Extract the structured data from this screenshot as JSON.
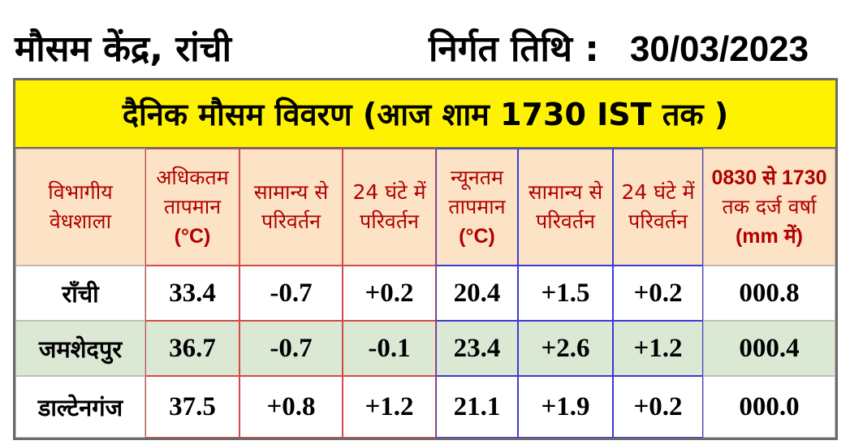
{
  "header": {
    "center_name": "मौसम केंद्र, रांची",
    "issue_label": "निर्गत तिथि :",
    "issue_date": "30/03/2023"
  },
  "banner_title": "दैनिक मौसम विवरण (आज शाम 1730 IST तक )",
  "columns": {
    "station": [
      "विभागीय",
      "वेधशाला"
    ],
    "max_temp": [
      "अधिकतम",
      "तापमान",
      "(°C)"
    ],
    "max_dep_normal": [
      "सामान्य से",
      "परिवर्तन"
    ],
    "max_change_24h": [
      "24 घंटे में",
      "परिवर्तन"
    ],
    "min_temp": [
      "न्यूनतम",
      "तापमान",
      "(°C)"
    ],
    "min_dep_normal": [
      "सामान्य से",
      "परिवर्तन"
    ],
    "min_change_24h": [
      "24 घंटे में",
      "परिवर्तन"
    ],
    "rainfall": [
      "0830 से 1730",
      "तक दर्ज वर्षा",
      "(mm में)"
    ]
  },
  "rows": [
    {
      "station": "राँची",
      "max_temp": "33.4",
      "max_dep": "-0.7",
      "max_chg": "+0.2",
      "min_temp": "20.4",
      "min_dep": "+1.5",
      "min_chg": "+0.2",
      "rain": "000.8"
    },
    {
      "station": "जमशेदपुर",
      "max_temp": "36.7",
      "max_dep": "-0.7",
      "max_chg": "-0.1",
      "min_temp": "23.4",
      "min_dep": "+2.6",
      "min_chg": "+1.2",
      "rain": "000.4"
    },
    {
      "station": "डाल्टेनगंज",
      "max_temp": "37.5",
      "max_dep": "+0.8",
      "max_chg": "+1.2",
      "min_temp": "21.1",
      "min_dep": "+1.9",
      "min_chg": "+0.2",
      "rain": "000.0"
    }
  ],
  "colors": {
    "banner_bg": "#fff200",
    "header_bg": "#fde3c5",
    "header_text": "#b10000",
    "alt_row_bg": "#dbe9d4"
  }
}
